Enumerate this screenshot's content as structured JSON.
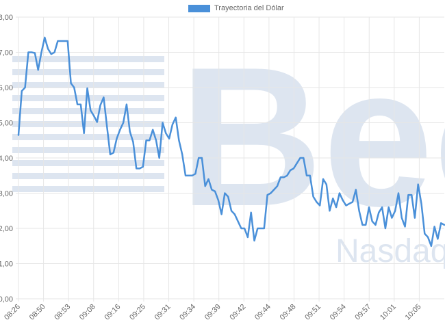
{
  "chart_data": {
    "type": "line",
    "legend": {
      "label": "Trayectoria del Dólar",
      "position": "top"
    },
    "colors": {
      "line": "#4a90d9",
      "grid": "#e6e6e6",
      "watermark": "#dde5f0"
    },
    "ylim": [
      0,
      8
    ],
    "y_ticks": [
      "0,00",
      "1,00",
      "2,00",
      "3,00",
      "4,00",
      "5,00",
      "6,00",
      "7,00",
      "8,00"
    ],
    "x_tick_labels": [
      "08:26",
      "08:50",
      "08:53",
      "09:08",
      "09:16",
      "09:25",
      "09:31",
      "09:34",
      "09:39",
      "09:42",
      "09:44",
      "09:48",
      "09:51",
      "09:54",
      "09:57",
      "10:01",
      "10:05"
    ],
    "grid": true,
    "watermark": {
      "text": "Bec",
      "secondary_text": "Nasdaq"
    },
    "series": [
      {
        "name": "Trayectoria del Dólar",
        "values": [
          4.65,
          5.9,
          6.0,
          7.0,
          7.0,
          6.98,
          6.5,
          7.0,
          7.42,
          7.1,
          6.95,
          7.0,
          7.32,
          7.32,
          7.32,
          7.32,
          6.12,
          6.0,
          5.52,
          5.52,
          4.7,
          5.98,
          5.35,
          5.2,
          5.02,
          5.5,
          5.72,
          4.9,
          4.1,
          4.15,
          4.55,
          4.8,
          5.0,
          5.52,
          4.75,
          4.45,
          3.7,
          3.7,
          3.75,
          4.5,
          4.5,
          4.8,
          4.5,
          4.0,
          5.0,
          4.7,
          4.55,
          4.95,
          5.15,
          4.5,
          4.1,
          3.5,
          3.5,
          3.5,
          3.55,
          4.0,
          4.0,
          3.2,
          3.4,
          3.1,
          3.05,
          2.8,
          2.4,
          3.0,
          2.9,
          2.5,
          2.4,
          2.2,
          2.0,
          2.0,
          1.75,
          2.45,
          1.65,
          2.0,
          2.0,
          2.0,
          2.95,
          3.0,
          3.1,
          3.2,
          3.45,
          3.45,
          3.5,
          3.65,
          3.7,
          3.85,
          4.0,
          4.0,
          3.5,
          3.5,
          2.9,
          2.75,
          2.65,
          3.4,
          3.25,
          2.5,
          2.85,
          2.6,
          3.0,
          2.8,
          2.65,
          2.7,
          2.75,
          3.1,
          2.5,
          2.1,
          2.1,
          2.6,
          2.2,
          2.1,
          2.45,
          2.6,
          2.0,
          2.6,
          2.3,
          2.5,
          3.0,
          2.3,
          2.05,
          2.95,
          2.95,
          2.3,
          3.25,
          2.7,
          1.85,
          1.75,
          1.5,
          2.05,
          1.7,
          2.15,
          2.1
        ]
      }
    ]
  }
}
